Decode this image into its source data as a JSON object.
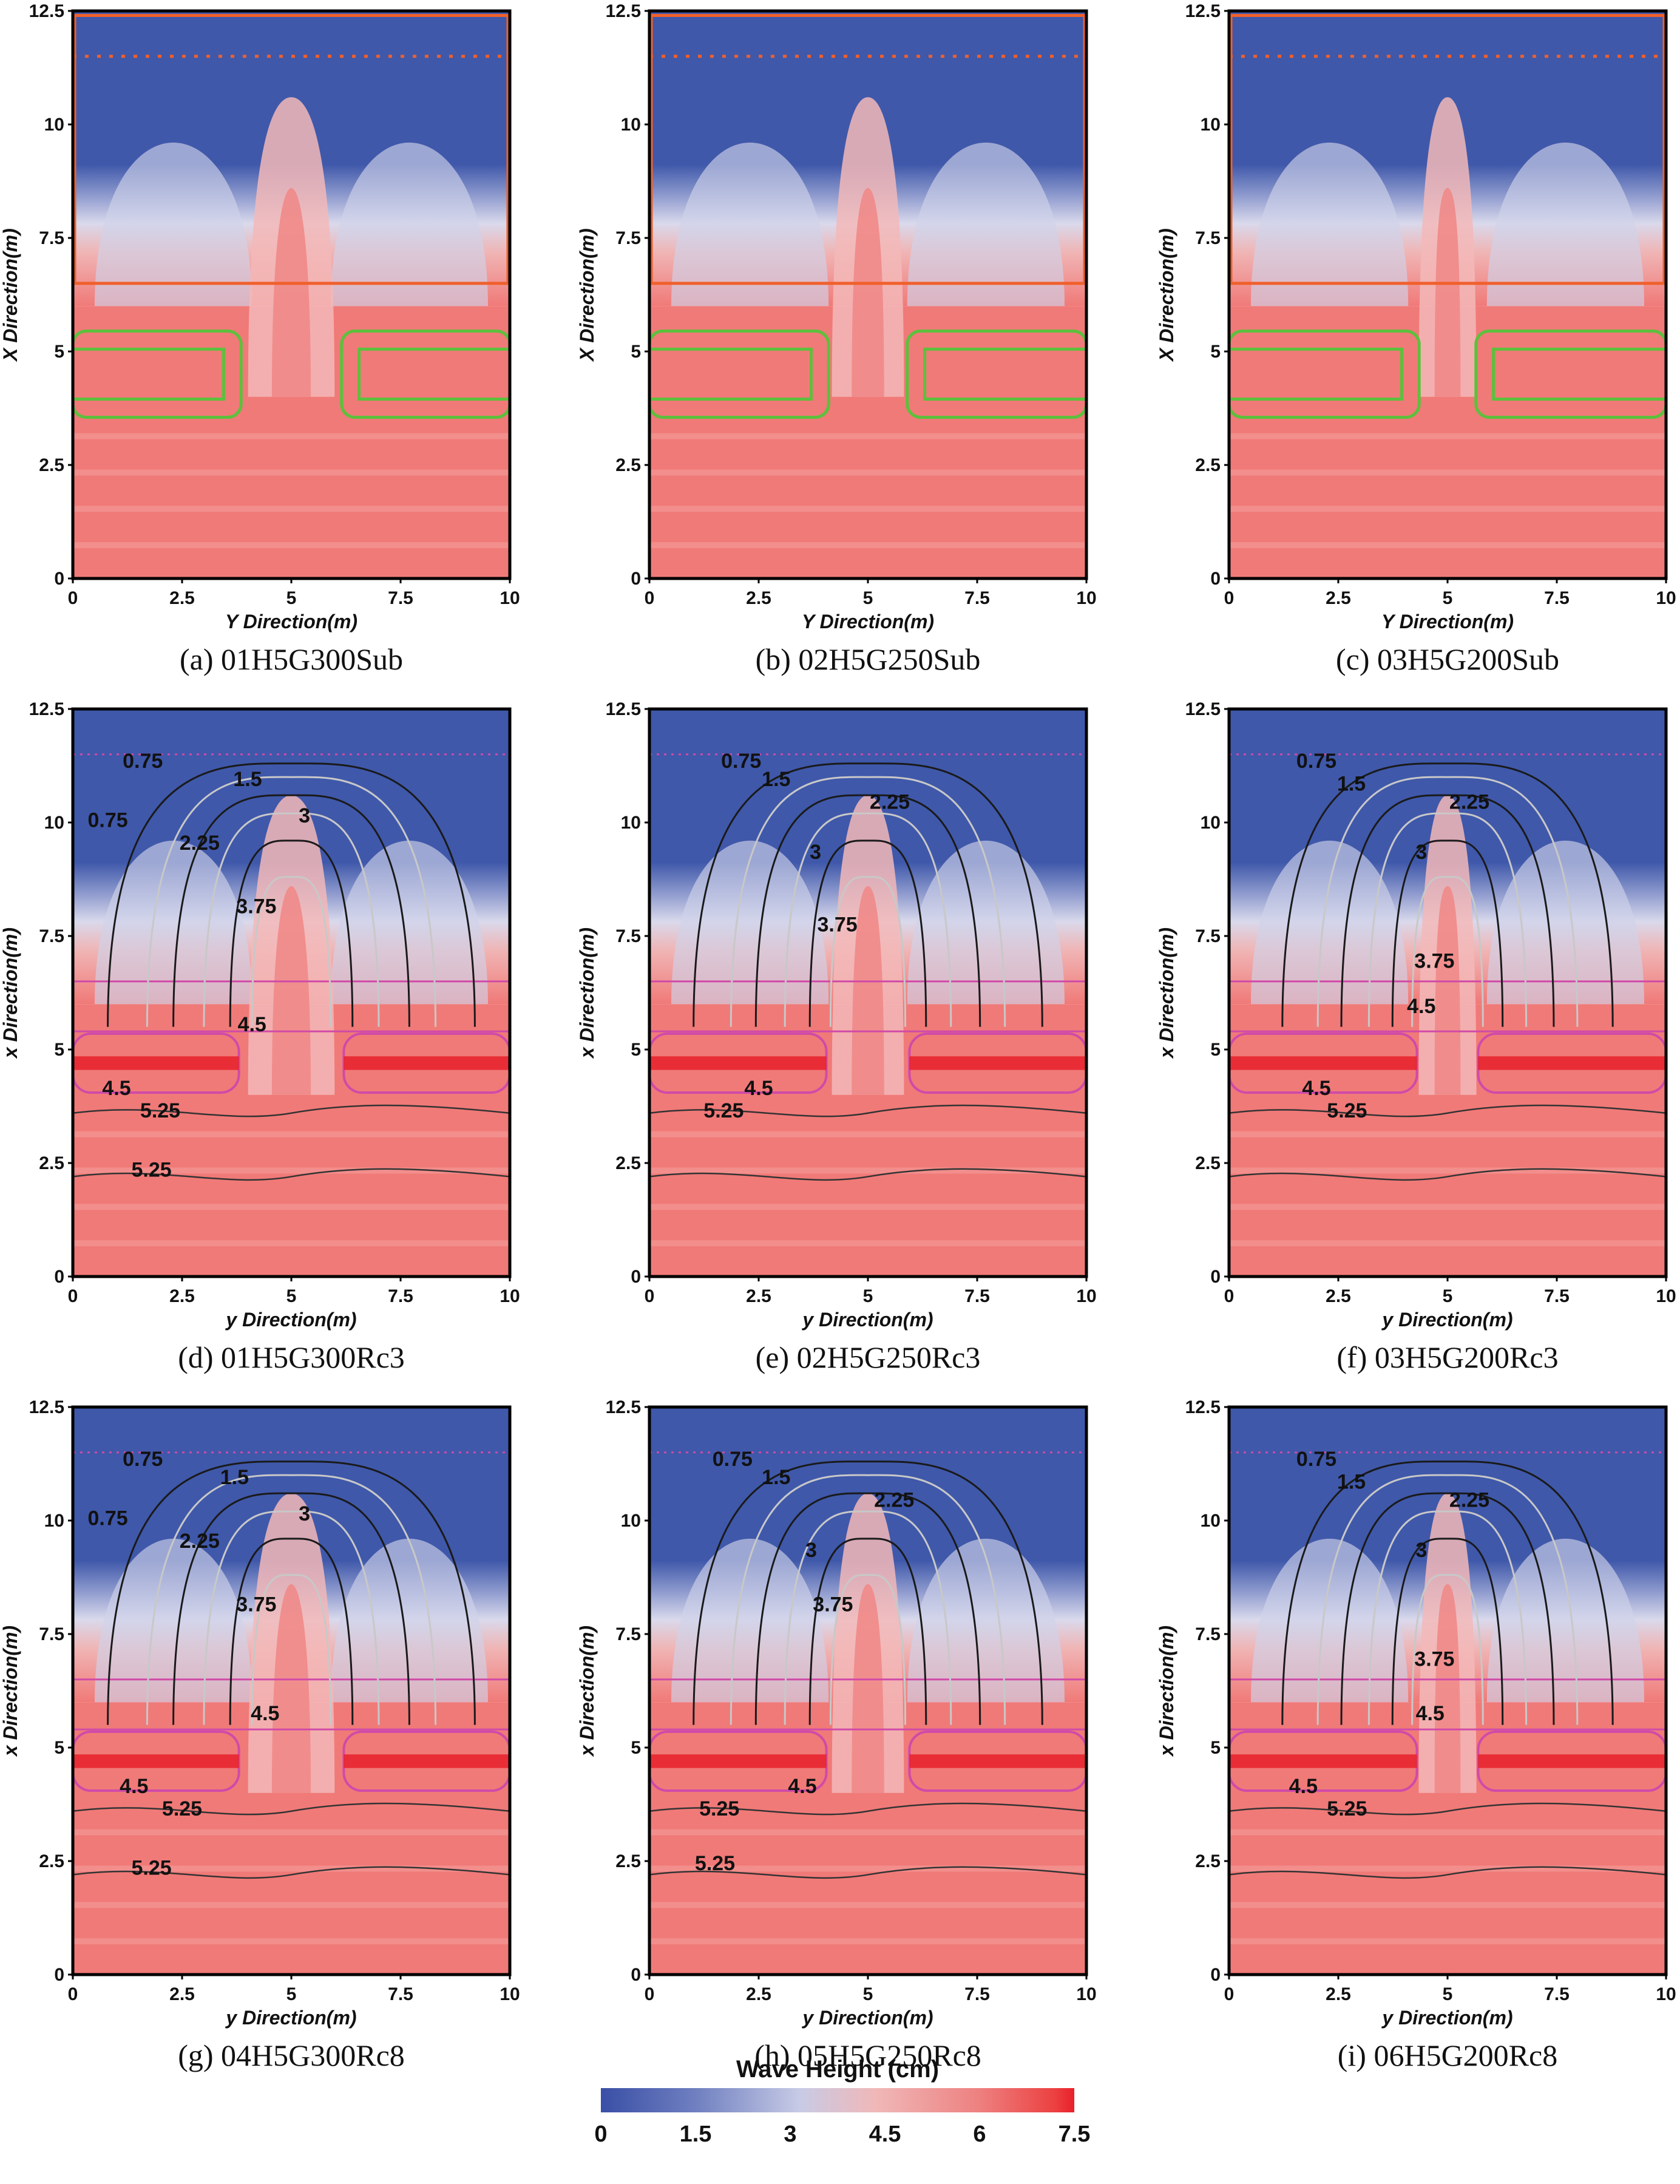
{
  "colors": {
    "low": "#3f58aa",
    "mid": "#d9d9ec",
    "high": "#f07a78",
    "max": "#e8202a",
    "submerged_line": "#f0602c",
    "breakwater_outline": "#5cc03c",
    "rc_line": "#d04aa8"
  },
  "chart_data": [
    {
      "id": "a",
      "type": "heatmap",
      "caption": "(a) 01H5G300Sub",
      "xlabel": "Y Direction(m)",
      "ylabel": "X Direction(m)",
      "xticks": [
        "0",
        "2.5",
        "5",
        "7.5",
        "10"
      ],
      "yticks": [
        "0",
        "2.5",
        "5",
        "7.5",
        "10",
        "12.5"
      ],
      "xlim": [
        0,
        10
      ],
      "ylim": [
        0,
        12.5
      ],
      "variant": "Sub",
      "gap": 3.0,
      "contour_labels": []
    },
    {
      "id": "b",
      "type": "heatmap",
      "caption": "(b) 02H5G250Sub",
      "xlabel": "Y Direction(m)",
      "ylabel": "X Direction(m)",
      "xticks": [
        "0",
        "2.5",
        "5",
        "7.5",
        "10"
      ],
      "yticks": [
        "0",
        "2.5",
        "5",
        "7.5",
        "10",
        "12.5"
      ],
      "xlim": [
        0,
        10
      ],
      "ylim": [
        0,
        12.5
      ],
      "variant": "Sub",
      "gap": 2.5,
      "contour_labels": []
    },
    {
      "id": "c",
      "type": "heatmap",
      "caption": "(c) 03H5G200Sub",
      "xlabel": "Y Direction(m)",
      "ylabel": "X Direction(m)",
      "xticks": [
        "0",
        "2.5",
        "5",
        "7.5",
        "10"
      ],
      "yticks": [
        "0",
        "2.5",
        "5",
        "7.5",
        "10",
        "12.5"
      ],
      "xlim": [
        0,
        10
      ],
      "ylim": [
        0,
        12.5
      ],
      "variant": "Sub",
      "gap": 2.0,
      "contour_labels": []
    },
    {
      "id": "d",
      "type": "heatmap",
      "caption": "(d) 01H5G300Rc3",
      "xlabel": "y Direction(m)",
      "ylabel": "x Direction(m)",
      "xticks": [
        "0",
        "2.5",
        "5",
        "7.5",
        "10"
      ],
      "yticks": [
        "0",
        "2.5",
        "5",
        "7.5",
        "10",
        "12.5"
      ],
      "xlim": [
        0,
        10
      ],
      "ylim": [
        0,
        12.5
      ],
      "variant": "Rc",
      "gap": 3.0,
      "contour_labels": [
        {
          "text": "0.75",
          "x": 1.6,
          "y": 11.2
        },
        {
          "text": "1.5",
          "x": 4.0,
          "y": 10.8
        },
        {
          "text": "3",
          "x": 5.3,
          "y": 10.0
        },
        {
          "text": "0.75",
          "x": 0.8,
          "y": 9.9
        },
        {
          "text": "2.25",
          "x": 2.9,
          "y": 9.4
        },
        {
          "text": "3.75",
          "x": 4.2,
          "y": 8.0
        },
        {
          "text": "4.5",
          "x": 4.1,
          "y": 5.4
        },
        {
          "text": "4.5",
          "x": 1.0,
          "y": 4.0
        },
        {
          "text": "5.25",
          "x": 2.0,
          "y": 3.5
        },
        {
          "text": "5.25",
          "x": 1.8,
          "y": 2.2
        }
      ]
    },
    {
      "id": "e",
      "type": "heatmap",
      "caption": "(e) 02H5G250Rc3",
      "xlabel": "y Direction(m)",
      "ylabel": "x Direction(m)",
      "xticks": [
        "0",
        "2.5",
        "5",
        "7.5",
        "10"
      ],
      "yticks": [
        "0",
        "2.5",
        "5",
        "7.5",
        "10",
        "12.5"
      ],
      "xlim": [
        0,
        10
      ],
      "ylim": [
        0,
        12.5
      ],
      "variant": "Rc",
      "gap": 2.5,
      "contour_labels": [
        {
          "text": "0.75",
          "x": 2.1,
          "y": 11.2
        },
        {
          "text": "1.5",
          "x": 2.9,
          "y": 10.8
        },
        {
          "text": "2.25",
          "x": 5.5,
          "y": 10.3
        },
        {
          "text": "3",
          "x": 3.8,
          "y": 9.2
        },
        {
          "text": "3.75",
          "x": 4.3,
          "y": 7.6
        },
        {
          "text": "4.5",
          "x": 2.5,
          "y": 4.0
        },
        {
          "text": "5.25",
          "x": 1.7,
          "y": 3.5
        }
      ]
    },
    {
      "id": "f",
      "type": "heatmap",
      "caption": "(f) 03H5G200Rc3",
      "xlabel": "y Direction(m)",
      "ylabel": "x Direction(m)",
      "xticks": [
        "0",
        "2.5",
        "5",
        "7.5",
        "10"
      ],
      "yticks": [
        "0",
        "2.5",
        "5",
        "7.5",
        "10",
        "12.5"
      ],
      "xlim": [
        0,
        10
      ],
      "ylim": [
        0,
        12.5
      ],
      "variant": "Rc",
      "gap": 2.0,
      "contour_labels": [
        {
          "text": "0.75",
          "x": 2.0,
          "y": 11.2
        },
        {
          "text": "1.5",
          "x": 2.8,
          "y": 10.7
        },
        {
          "text": "2.25",
          "x": 5.5,
          "y": 10.3
        },
        {
          "text": "3",
          "x": 4.4,
          "y": 9.2
        },
        {
          "text": "3.75",
          "x": 4.7,
          "y": 6.8
        },
        {
          "text": "4.5",
          "x": 4.4,
          "y": 5.8
        },
        {
          "text": "4.5",
          "x": 2.0,
          "y": 4.0
        },
        {
          "text": "5.25",
          "x": 2.7,
          "y": 3.5
        }
      ]
    },
    {
      "id": "g",
      "type": "heatmap",
      "caption": "(g) 04H5G300Rc8",
      "xlabel": "y Direction(m)",
      "ylabel": "x Direction(m)",
      "xticks": [
        "0",
        "2.5",
        "5",
        "7.5",
        "10"
      ],
      "yticks": [
        "0",
        "2.5",
        "5",
        "7.5",
        "10",
        "12.5"
      ],
      "xlim": [
        0,
        10
      ],
      "ylim": [
        0,
        12.5
      ],
      "variant": "Rc",
      "gap": 3.0,
      "contour_labels": [
        {
          "text": "0.75",
          "x": 1.6,
          "y": 11.2
        },
        {
          "text": "1.5",
          "x": 3.7,
          "y": 10.8
        },
        {
          "text": "3",
          "x": 5.3,
          "y": 10.0
        },
        {
          "text": "0.75",
          "x": 0.8,
          "y": 9.9
        },
        {
          "text": "2.25",
          "x": 2.9,
          "y": 9.4
        },
        {
          "text": "3.75",
          "x": 4.2,
          "y": 8.0
        },
        {
          "text": "4.5",
          "x": 4.4,
          "y": 5.6
        },
        {
          "text": "4.5",
          "x": 1.4,
          "y": 4.0
        },
        {
          "text": "5.25",
          "x": 2.5,
          "y": 3.5
        },
        {
          "text": "5.25",
          "x": 1.8,
          "y": 2.2
        }
      ]
    },
    {
      "id": "h",
      "type": "heatmap",
      "caption": "(h) 05H5G250Rc8",
      "xlabel": "y Direction(m)",
      "ylabel": "x Direction(m)",
      "xticks": [
        "0",
        "2.5",
        "5",
        "7.5",
        "10"
      ],
      "yticks": [
        "0",
        "2.5",
        "5",
        "7.5",
        "10",
        "12.5"
      ],
      "xlim": [
        0,
        10
      ],
      "ylim": [
        0,
        12.5
      ],
      "variant": "Rc",
      "gap": 2.5,
      "contour_labels": [
        {
          "text": "0.75",
          "x": 1.9,
          "y": 11.2
        },
        {
          "text": "1.5",
          "x": 2.9,
          "y": 10.8
        },
        {
          "text": "2.25",
          "x": 5.6,
          "y": 10.3
        },
        {
          "text": "3",
          "x": 3.7,
          "y": 9.2
        },
        {
          "text": "3.75",
          "x": 4.2,
          "y": 8.0
        },
        {
          "text": "4.5",
          "x": 3.5,
          "y": 4.0
        },
        {
          "text": "5.25",
          "x": 1.6,
          "y": 3.5
        },
        {
          "text": "5.25",
          "x": 1.5,
          "y": 2.3
        }
      ]
    },
    {
      "id": "i",
      "type": "heatmap",
      "caption": "(i) 06H5G200Rc8",
      "xlabel": "y Direction(m)",
      "ylabel": "x Direction(m)",
      "xticks": [
        "0",
        "2.5",
        "5",
        "7.5",
        "10"
      ],
      "yticks": [
        "0",
        "2.5",
        "5",
        "7.5",
        "10",
        "12.5"
      ],
      "xlim": [
        0,
        10
      ],
      "ylim": [
        0,
        12.5
      ],
      "variant": "Rc",
      "gap": 2.0,
      "contour_labels": [
        {
          "text": "0.75",
          "x": 2.0,
          "y": 11.2
        },
        {
          "text": "1.5",
          "x": 2.8,
          "y": 10.7
        },
        {
          "text": "2.25",
          "x": 5.5,
          "y": 10.3
        },
        {
          "text": "3",
          "x": 4.4,
          "y": 9.2
        },
        {
          "text": "3.75",
          "x": 4.7,
          "y": 6.8
        },
        {
          "text": "4.5",
          "x": 4.6,
          "y": 5.6
        },
        {
          "text": "4.5",
          "x": 1.7,
          "y": 4.0
        },
        {
          "text": "5.25",
          "x": 2.7,
          "y": 3.5
        }
      ]
    }
  ],
  "colorbar": {
    "title": "Wave Height (cm)",
    "ticks": [
      "0",
      "1.5",
      "3",
      "4.5",
      "6",
      "7.5"
    ],
    "range": [
      0,
      7.5
    ]
  }
}
